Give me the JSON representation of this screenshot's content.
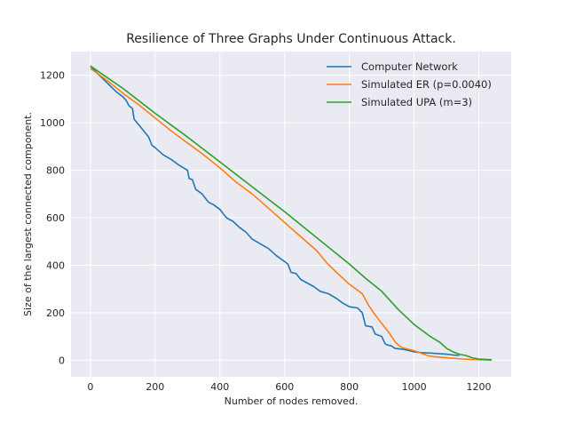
{
  "chart_data": {
    "type": "line",
    "title": "Resilience of Three Graphs Under Continuous Attack.",
    "xlabel": "Number of nodes removed.",
    "ylabel": "Size of the largest connected component.",
    "xlim": [
      -60,
      1300
    ],
    "ylim": [
      -70,
      1300
    ],
    "xticks": [
      0,
      200,
      400,
      600,
      800,
      1000,
      1200
    ],
    "yticks": [
      0,
      200,
      400,
      600,
      800,
      1000,
      1200
    ],
    "grid": true,
    "legend_position": "upper-right",
    "series": [
      {
        "name": "Computer Network",
        "color": "#1f77b4",
        "points": [
          [
            0,
            1239
          ],
          [
            20,
            1210
          ],
          [
            50,
            1170
          ],
          [
            80,
            1130
          ],
          [
            100,
            1110
          ],
          [
            110,
            1095
          ],
          [
            120,
            1070
          ],
          [
            130,
            1060
          ],
          [
            135,
            1015
          ],
          [
            150,
            990
          ],
          [
            165,
            965
          ],
          [
            180,
            940
          ],
          [
            190,
            905
          ],
          [
            200,
            895
          ],
          [
            225,
            865
          ],
          [
            250,
            845
          ],
          [
            275,
            820
          ],
          [
            300,
            800
          ],
          [
            305,
            765
          ],
          [
            315,
            760
          ],
          [
            325,
            720
          ],
          [
            345,
            700
          ],
          [
            365,
            665
          ],
          [
            380,
            655
          ],
          [
            400,
            635
          ],
          [
            420,
            600
          ],
          [
            440,
            585
          ],
          [
            460,
            560
          ],
          [
            480,
            540
          ],
          [
            500,
            510
          ],
          [
            525,
            490
          ],
          [
            550,
            470
          ],
          [
            575,
            440
          ],
          [
            600,
            415
          ],
          [
            610,
            405
          ],
          [
            620,
            370
          ],
          [
            635,
            365
          ],
          [
            650,
            340
          ],
          [
            670,
            325
          ],
          [
            690,
            310
          ],
          [
            710,
            290
          ],
          [
            735,
            280
          ],
          [
            760,
            260
          ],
          [
            780,
            240
          ],
          [
            800,
            225
          ],
          [
            825,
            220
          ],
          [
            840,
            200
          ],
          [
            850,
            145
          ],
          [
            870,
            140
          ],
          [
            880,
            110
          ],
          [
            900,
            100
          ],
          [
            910,
            70
          ],
          [
            915,
            65
          ],
          [
            930,
            60
          ],
          [
            940,
            50
          ],
          [
            970,
            45
          ],
          [
            1000,
            35
          ],
          [
            1020,
            32
          ],
          [
            1050,
            30
          ],
          [
            1080,
            27
          ],
          [
            1100,
            25
          ],
          [
            1120,
            22
          ],
          [
            1140,
            20
          ]
        ]
      },
      {
        "name": "Simulated ER (p=0.0040)",
        "color": "#ff7f0e",
        "points": [
          [
            0,
            1229
          ],
          [
            50,
            1180
          ],
          [
            100,
            1125
          ],
          [
            150,
            1075
          ],
          [
            200,
            1020
          ],
          [
            250,
            965
          ],
          [
            300,
            915
          ],
          [
            350,
            865
          ],
          [
            400,
            810
          ],
          [
            450,
            750
          ],
          [
            500,
            700
          ],
          [
            550,
            640
          ],
          [
            600,
            580
          ],
          [
            650,
            520
          ],
          [
            700,
            460
          ],
          [
            730,
            410
          ],
          [
            760,
            370
          ],
          [
            800,
            320
          ],
          [
            840,
            280
          ],
          [
            860,
            230
          ],
          [
            880,
            190
          ],
          [
            900,
            155
          ],
          [
            920,
            120
          ],
          [
            940,
            80
          ],
          [
            950,
            65
          ],
          [
            960,
            55
          ],
          [
            970,
            50
          ],
          [
            1000,
            40
          ],
          [
            1020,
            30
          ],
          [
            1040,
            20
          ],
          [
            1060,
            15
          ],
          [
            1100,
            10
          ],
          [
            1150,
            5
          ],
          [
            1200,
            2
          ],
          [
            1240,
            0
          ]
        ]
      },
      {
        "name": "Simulated UPA (m=3)",
        "color": "#2ca02c",
        "points": [
          [
            0,
            1239
          ],
          [
            100,
            1145
          ],
          [
            200,
            1040
          ],
          [
            300,
            940
          ],
          [
            400,
            835
          ],
          [
            500,
            730
          ],
          [
            600,
            625
          ],
          [
            700,
            515
          ],
          [
            800,
            405
          ],
          [
            850,
            345
          ],
          [
            900,
            290
          ],
          [
            950,
            215
          ],
          [
            1000,
            150
          ],
          [
            1050,
            100
          ],
          [
            1080,
            75
          ],
          [
            1100,
            50
          ],
          [
            1120,
            35
          ],
          [
            1140,
            25
          ],
          [
            1160,
            20
          ],
          [
            1180,
            10
          ],
          [
            1200,
            5
          ],
          [
            1240,
            2
          ]
        ]
      }
    ]
  }
}
